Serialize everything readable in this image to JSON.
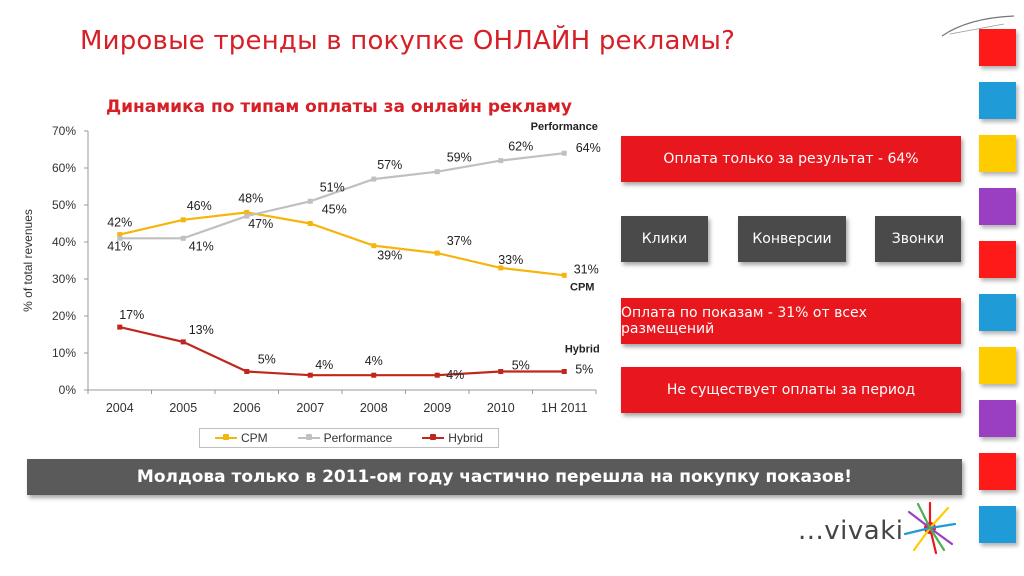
{
  "page": {
    "title": "Мировые тренды в покупке ОНЛАЙН рекламы?",
    "footer_banner": "Молдова только в 2011-ом году частично перешла на покупку показов!",
    "logo_text": "...vivaki"
  },
  "colors": {
    "title_red": "#d61f26",
    "box_red": "#e8171e",
    "box_dark": "#4a4a4a",
    "cpm": "#f5b50d",
    "performance": "#c0c0c0",
    "hybrid": "#c0271c"
  },
  "right_panel": {
    "performance_box": "Оплата только за результат - 64%",
    "sub_boxes": [
      "Клики",
      "Конверсии",
      "Звонки"
    ],
    "impressions_box": "Оплата по показам - 31% от всех размещений",
    "period_box": "Не существует оплаты за период"
  },
  "side_squares": [
    "#ff1a1a",
    "#1f9bd7",
    "#ffcc00",
    "#9b3fc2",
    "#ff1a1a",
    "#1f9bd7",
    "#ffcc00",
    "#9b3fc2",
    "#ff1a1a",
    "#1f9bd7"
  ],
  "chart_data": {
    "type": "line",
    "title": "Динамика по типам оплаты за онлайн рекламу",
    "ylabel": "% of total revenues",
    "xlabel": "",
    "categories": [
      "2004",
      "2005",
      "2006",
      "2007",
      "2008",
      "2009",
      "2010",
      "1H 2011"
    ],
    "ylim": [
      0,
      70
    ],
    "yticks": [
      "0%",
      "10%",
      "20%",
      "30%",
      "40%",
      "50%",
      "60%",
      "70%"
    ],
    "grid": false,
    "legend": "bottom",
    "series": [
      {
        "name": "CPM",
        "color_key": "cpm",
        "values": [
          42,
          46,
          48,
          45,
          39,
          37,
          33,
          31
        ],
        "labels": [
          "42%",
          "46%",
          "48%",
          "45%",
          "39%",
          "37%",
          "33%",
          "31%"
        ],
        "end_label": "CPM"
      },
      {
        "name": "Performance",
        "color_key": "performance",
        "values": [
          41,
          41,
          47,
          51,
          57,
          59,
          62,
          64
        ],
        "labels": [
          "41%",
          "41%",
          "47%",
          "51%",
          "57%",
          "59%",
          "62%",
          "64%"
        ],
        "end_label": "Performance"
      },
      {
        "name": "Hybrid",
        "color_key": "hybrid",
        "values": [
          17,
          13,
          5,
          4,
          4,
          4,
          5,
          5
        ],
        "labels": [
          "17%",
          "13%",
          "5%",
          "4%",
          "4%",
          "4%",
          "5%",
          "5%"
        ],
        "end_label": "Hybrid"
      }
    ]
  }
}
